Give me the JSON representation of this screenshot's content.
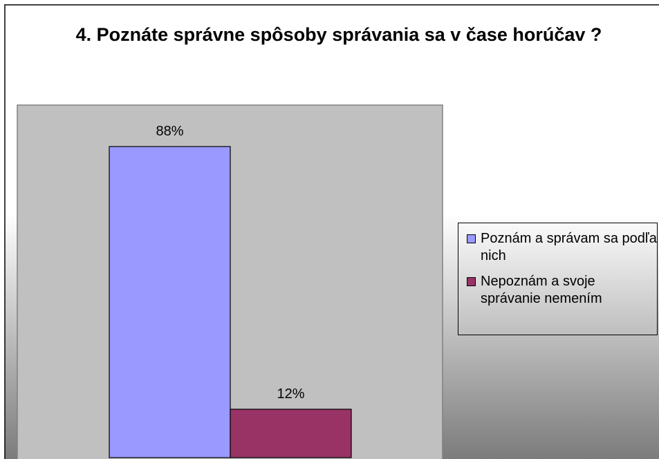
{
  "chart_data": {
    "type": "bar",
    "title": "4. Poznáte správne spôsoby správania sa v čase horúčav ?",
    "categories": [
      null
    ],
    "series": [
      {
        "name": "Poznám a správam sa podľa nich",
        "color": "#9999ff",
        "values": [
          88
        ],
        "value_labels": [
          "88%"
        ]
      },
      {
        "name": "Nepoznám a svoje správanie nemením",
        "color": "#993366",
        "values": [
          12
        ],
        "value_labels": [
          "12%"
        ]
      }
    ],
    "ylim": [
      0,
      100
    ],
    "plot_background": "#c0c0c0",
    "legend": "right"
  }
}
